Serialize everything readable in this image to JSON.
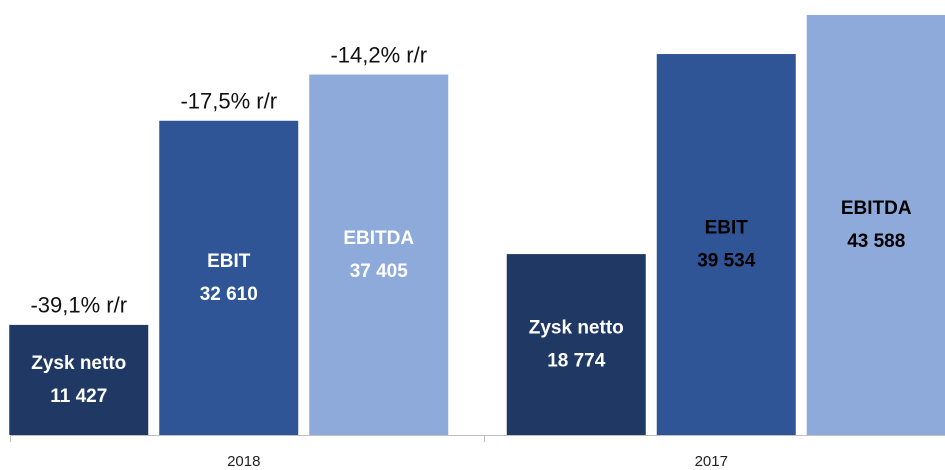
{
  "chart_data": {
    "type": "bar",
    "categories": [
      "2018",
      "2017"
    ],
    "ylim": [
      0,
      44000
    ],
    "series": [
      {
        "name": "Zysk netto",
        "color": "#1f3864",
        "values": [
          11427,
          18774
        ],
        "value_labels": [
          "11 427",
          "18 774"
        ],
        "label_colors": [
          "#ffffff",
          "#ffffff"
        ],
        "annotation": "-39,1% r/r"
      },
      {
        "name": "EBIT",
        "color": "#2f5597",
        "values": [
          32610,
          39534
        ],
        "value_labels": [
          "32 610",
          "39 534"
        ],
        "label_colors": [
          "#ffffff",
          "#000000"
        ],
        "annotation": "-17,5% r/r"
      },
      {
        "name": "EBITDA",
        "color": "#8eaadb",
        "values": [
          37405,
          43588
        ],
        "value_labels": [
          "37 405",
          "43 588"
        ],
        "label_colors": [
          "#ffffff",
          "#000000"
        ],
        "annotation": "-14,2% r/r"
      }
    ]
  }
}
